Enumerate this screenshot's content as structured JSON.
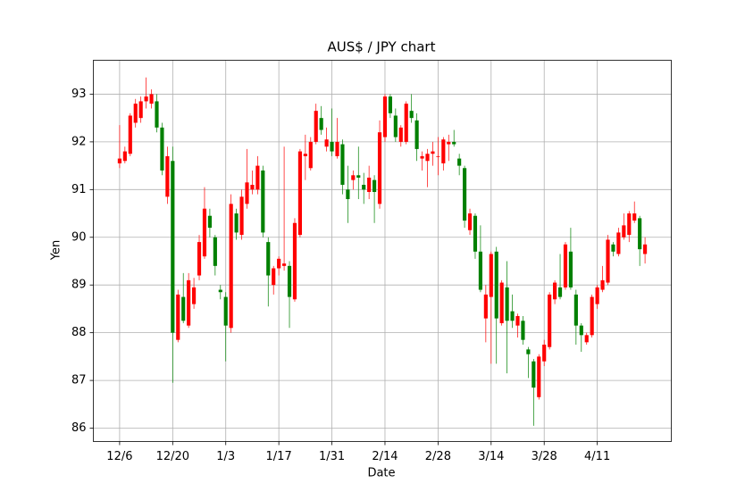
{
  "chart_data": {
    "type": "candlestick",
    "title": "AUS$ / JPY chart",
    "xlabel": "Date",
    "ylabel": "Yen",
    "categories": [
      "12/6",
      null,
      null,
      null,
      null,
      null,
      null,
      null,
      null,
      null,
      "12/20",
      null,
      null,
      null,
      null,
      null,
      null,
      null,
      null,
      null,
      "1/3",
      null,
      null,
      null,
      null,
      null,
      null,
      null,
      null,
      null,
      "1/17",
      null,
      null,
      null,
      null,
      null,
      null,
      null,
      null,
      null,
      "1/31",
      null,
      null,
      null,
      null,
      null,
      null,
      null,
      null,
      null,
      "2/14",
      null,
      null,
      null,
      null,
      null,
      null,
      null,
      null,
      null,
      "2/28",
      null,
      null,
      null,
      null,
      null,
      null,
      null,
      null,
      null,
      "3/14",
      null,
      null,
      null,
      null,
      null,
      null,
      null,
      null,
      null,
      "3/28",
      null,
      null,
      null,
      null,
      null,
      null,
      null,
      null,
      null,
      "4/11",
      null,
      null,
      null,
      null,
      null,
      null,
      null,
      null,
      null
    ],
    "open": [
      91.55,
      91.6,
      91.75,
      92.4,
      92.5,
      92.85,
      92.8,
      92.85,
      92.3,
      90.85,
      91.6,
      87.85,
      88.75,
      88.15,
      88.6,
      89.2,
      89.6,
      90.45,
      90.0,
      88.9,
      88.75,
      88.1,
      90.5,
      90.05,
      90.7,
      91.0,
      91.0,
      91.4,
      89.9,
      89.0,
      89.35,
      89.4,
      89.4,
      88.7,
      90.05,
      91.7,
      91.45,
      92.0,
      92.5,
      91.9,
      92.0,
      91.7,
      91.95,
      91.0,
      91.2,
      91.3,
      91.1,
      90.95,
      91.2,
      90.7,
      92.1,
      92.95,
      92.55,
      92.0,
      92.0,
      92.65,
      92.45,
      91.65,
      91.6,
      91.75,
      91.7,
      91.55,
      91.95,
      92.0,
      91.65,
      91.45,
      90.15,
      90.45,
      89.7,
      88.3,
      88.75,
      89.7,
      88.2,
      88.95,
      88.45,
      88.15,
      88.25,
      87.65,
      87.4,
      86.65,
      87.4,
      87.7,
      88.7,
      88.95,
      88.95,
      89.7,
      88.8,
      88.15,
      87.8,
      87.95,
      88.6,
      88.9,
      89.05,
      89.85,
      89.65,
      90.0,
      90.05,
      90.35,
      90.4,
      89.65
    ],
    "high": [
      92.35,
      91.9,
      92.6,
      92.9,
      92.95,
      93.35,
      93.1,
      93.0,
      92.4,
      91.9,
      91.9,
      88.9,
      89.25,
      89.25,
      89.15,
      90.05,
      91.05,
      90.6,
      90.05,
      89.0,
      88.85,
      90.9,
      90.6,
      91.0,
      91.85,
      91.4,
      91.7,
      91.5,
      90.0,
      89.4,
      89.6,
      91.9,
      89.5,
      90.4,
      91.85,
      92.15,
      92.1,
      92.8,
      92.75,
      92.3,
      92.7,
      92.5,
      92.05,
      91.5,
      91.4,
      91.9,
      91.35,
      91.5,
      91.3,
      92.45,
      93.0,
      93.0,
      92.7,
      92.35,
      92.85,
      93.0,
      92.6,
      91.8,
      91.85,
      92.0,
      92.1,
      92.1,
      92.15,
      92.25,
      91.75,
      91.5,
      90.6,
      90.5,
      90.25,
      89.0,
      89.7,
      89.8,
      89.1,
      89.5,
      88.8,
      88.4,
      88.35,
      87.7,
      87.45,
      87.55,
      87.85,
      88.85,
      89.1,
      89.65,
      89.9,
      90.2,
      88.9,
      88.2,
      88.0,
      88.8,
      89.0,
      89.4,
      90.05,
      89.9,
      90.2,
      90.5,
      90.55,
      90.75,
      90.45,
      90.0
    ],
    "low": [
      91.45,
      91.55,
      91.7,
      92.3,
      92.4,
      92.7,
      92.7,
      92.2,
      91.3,
      90.7,
      86.95,
      87.8,
      88.2,
      88.1,
      88.5,
      89.1,
      89.55,
      90.0,
      89.2,
      88.7,
      87.4,
      88.0,
      89.95,
      89.95,
      90.6,
      90.9,
      90.9,
      90.0,
      88.55,
      88.8,
      89.2,
      89.3,
      88.1,
      88.65,
      90.0,
      91.2,
      91.4,
      91.95,
      92.15,
      91.8,
      91.7,
      91.65,
      90.9,
      90.3,
      91.0,
      90.8,
      90.7,
      90.8,
      90.3,
      90.6,
      92.0,
      92.5,
      92.0,
      91.9,
      91.95,
      92.4,
      91.6,
      91.4,
      91.05,
      91.5,
      91.3,
      91.4,
      91.6,
      91.9,
      91.3,
      90.2,
      90.05,
      89.55,
      88.85,
      87.8,
      87.35,
      87.35,
      88.15,
      87.15,
      88.1,
      87.9,
      87.75,
      87.05,
      86.05,
      86.6,
      87.3,
      87.65,
      88.6,
      88.7,
      88.9,
      88.9,
      87.75,
      87.6,
      87.75,
      87.9,
      88.5,
      88.85,
      89.0,
      89.6,
      89.6,
      89.95,
      89.9,
      90.3,
      89.4,
      89.45
    ],
    "close": [
      91.65,
      91.8,
      92.55,
      92.8,
      92.85,
      92.95,
      93.0,
      92.3,
      91.4,
      91.7,
      88.0,
      88.8,
      88.25,
      89.1,
      88.95,
      89.9,
      90.6,
      90.2,
      89.4,
      88.85,
      88.15,
      90.7,
      90.1,
      90.85,
      91.15,
      91.1,
      91.5,
      90.1,
      89.2,
      89.35,
      89.55,
      89.45,
      88.75,
      90.3,
      91.8,
      91.75,
      92.0,
      92.65,
      92.25,
      92.05,
      91.8,
      92.0,
      91.1,
      90.8,
      91.3,
      91.25,
      91.0,
      91.25,
      90.95,
      92.2,
      92.95,
      92.6,
      92.1,
      92.3,
      92.8,
      92.5,
      91.85,
      91.7,
      91.75,
      91.8,
      91.7,
      92.05,
      92.0,
      91.95,
      91.5,
      90.35,
      90.5,
      89.7,
      88.9,
      88.8,
      89.65,
      88.3,
      89.05,
      88.25,
      88.25,
      88.35,
      87.85,
      87.55,
      86.85,
      87.5,
      87.75,
      88.8,
      89.05,
      88.75,
      89.85,
      88.95,
      88.15,
      87.95,
      87.95,
      88.75,
      88.95,
      89.1,
      89.95,
      89.7,
      90.1,
      90.25,
      90.5,
      90.5,
      89.75,
      89.85
    ],
    "up_color": "#ff0000",
    "down_color": "#008000",
    "xlim": [
      -4.95,
      103.95
    ],
    "ylim": [
      85.72,
      93.71
    ],
    "yticks": [
      86,
      87,
      88,
      89,
      90,
      91,
      92,
      93
    ],
    "grid": true
  }
}
